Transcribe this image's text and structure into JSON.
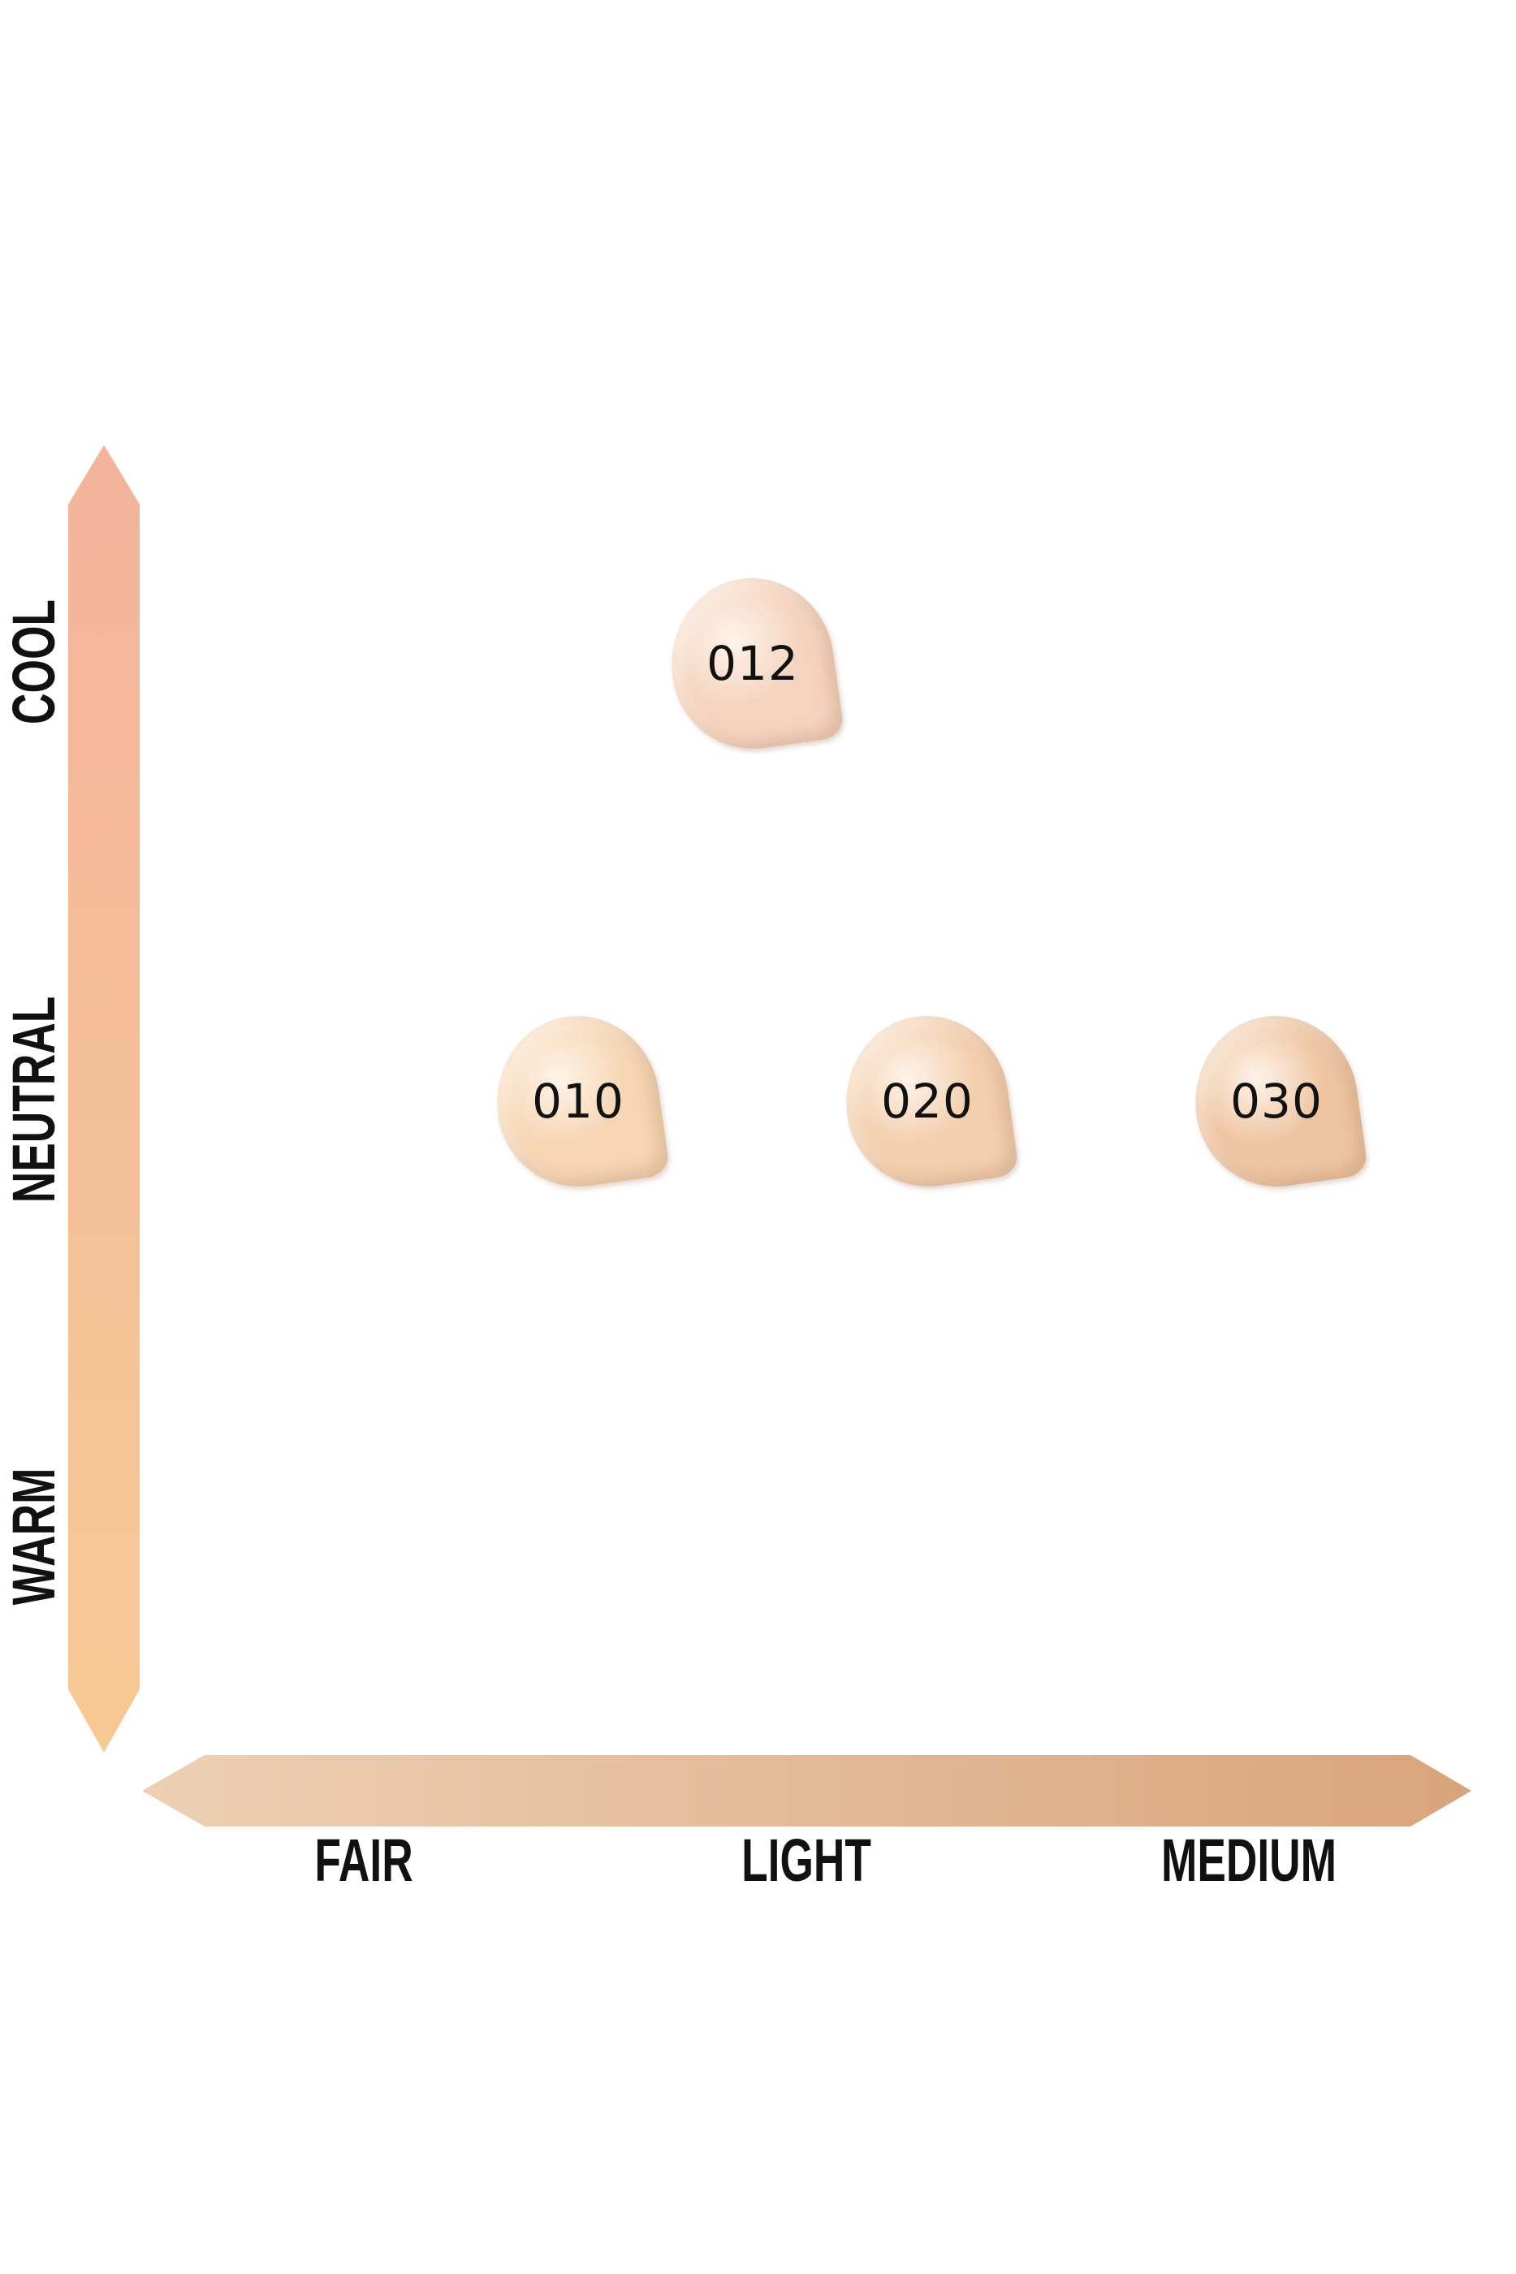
{
  "chart_data": {
    "type": "scatter",
    "title": "",
    "x_axis": {
      "categories": [
        "FAIR",
        "LIGHT",
        "MEDIUM"
      ],
      "gradient": [
        "#edd0b3",
        "#d9a47c"
      ]
    },
    "y_axis": {
      "categories": [
        "WARM",
        "NEUTRAL",
        "COOL"
      ],
      "gradient": [
        "#f7c994",
        "#f2b49c"
      ]
    },
    "points": [
      {
        "label": "012",
        "x": 1.5,
        "y": "COOL",
        "color": "#f5d4bf"
      },
      {
        "label": "010",
        "x": 1,
        "y": "NEUTRAL",
        "color": "#f6d6b4"
      },
      {
        "label": "020",
        "x": 2,
        "y": "NEUTRAL",
        "color": "#f3cfae"
      },
      {
        "label": "030",
        "x": 3,
        "y": "NEUTRAL",
        "color": "#eec5a2"
      }
    ],
    "grid": false
  }
}
